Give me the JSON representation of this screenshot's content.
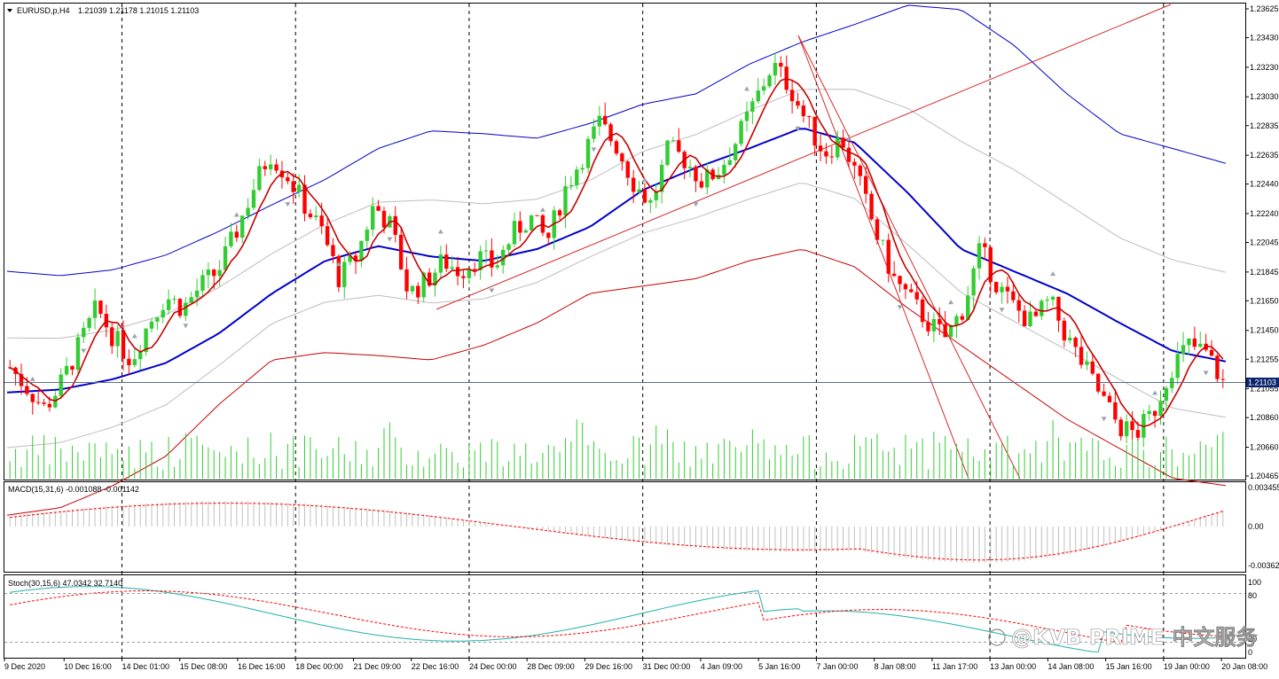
{
  "header": {
    "symbol_label": "EURUSD,p,H4",
    "ohlc": "1.21039 1.21178 1.21015 1.21103"
  },
  "macd": {
    "label": "MACD(15,31,6) -0.001088 -0.001142"
  },
  "stoch": {
    "label": "Stoch(30,15,6) 47.0342 32.7140"
  },
  "watermark": "@KVB PRIME 中文服务",
  "colors": {
    "bull": "#32cd32",
    "bear": "#ff0000",
    "bollinger_outer_upper": "#0000c8",
    "bollinger_outer_lower": "#c80000",
    "middle_band": "#0000c8",
    "fast_ma": "#c80000",
    "stoch_main": "#20b2aa",
    "stoch_signal": "#ff0000",
    "current_price_bg": "#0a246a"
  },
  "chart_data": [
    {
      "type": "candlestick",
      "title": "EURUSD,p,H4",
      "y_ticks": [
        "1.23625",
        "1.23430",
        "1.23230",
        "1.23030",
        "1.22835",
        "1.22635",
        "1.22440",
        "1.22240",
        "1.22045",
        "1.21845",
        "1.21650",
        "1.21450",
        "1.21255",
        "1.21055",
        "1.20860",
        "1.20660",
        "1.20465"
      ],
      "ylim": [
        1.20465,
        1.23625
      ],
      "current_price": "1.21103",
      "x_ticks": [
        "9 Dec 2020",
        "10 Dec 16:00",
        "14 Dec 01:00",
        "15 Dec 08:00",
        "16 Dec 16:00",
        "18 Dec 00:00",
        "21 Dec 09:00",
        "22 Dec 16:00",
        "24 Dec 00:00",
        "28 Dec 09:00",
        "29 Dec 16:00",
        "31 Dec 00:00",
        "4 Jan 09:00",
        "5 Jan 16:00",
        "7 Jan 00:00",
        "8 Jan 08:00",
        "11 Jan 17:00",
        "13 Jan 00:00",
        "14 Jan 08:00",
        "15 Jan 16:00",
        "19 Jan 00:00",
        "20 Jan 08:00"
      ],
      "close_path": [
        1.212,
        1.2106,
        1.2092,
        1.211,
        1.2135,
        1.216,
        1.214,
        1.2125,
        1.215,
        1.2168,
        1.216,
        1.2175,
        1.2185,
        1.221,
        1.224,
        1.2265,
        1.225,
        1.223,
        1.2212,
        1.218,
        1.2195,
        1.223,
        1.2215,
        1.217,
        1.2178,
        1.2192,
        1.2185,
        1.2195,
        1.2188,
        1.221,
        1.2222,
        1.2205,
        1.224,
        1.2262,
        1.2285,
        1.227,
        1.2245,
        1.223,
        1.2268,
        1.226,
        1.2245,
        1.2255,
        1.2275,
        1.23,
        1.2325,
        1.231,
        1.2285,
        1.2265,
        1.2275,
        1.2245,
        1.221,
        1.218,
        1.2165,
        1.215,
        1.214,
        1.216,
        1.22,
        1.2175,
        1.216,
        1.215,
        1.2165,
        1.214,
        1.212,
        1.21,
        1.208,
        1.2075,
        1.209,
        1.212,
        1.2135,
        1.213,
        1.211
      ],
      "bollinger": {
        "upper": [
          1.2185,
          1.2182,
          1.2186,
          1.2196,
          1.2212,
          1.223,
          1.2247,
          1.2268,
          1.228,
          1.2278,
          1.2275,
          1.2285,
          1.2298,
          1.2305,
          1.2325,
          1.234,
          1.2352,
          1.2365,
          1.2362,
          1.2338,
          1.2305,
          1.2278,
          1.2268,
          1.2258
        ],
        "middle": [
          1.2103,
          1.2105,
          1.2112,
          1.2123,
          1.2143,
          1.217,
          1.2192,
          1.2202,
          1.2195,
          1.2192,
          1.22,
          1.2215,
          1.224,
          1.2255,
          1.2268,
          1.2282,
          1.2272,
          1.2238,
          1.22,
          1.2185,
          1.217,
          1.215,
          1.2131,
          1.2124
        ],
        "lower": [
          1.202,
          1.2025,
          1.204,
          1.206,
          1.2095,
          1.2125,
          1.213,
          1.2128,
          1.2125,
          1.2135,
          1.215,
          1.217,
          1.2175,
          1.218,
          1.2192,
          1.22,
          1.2188,
          1.216,
          1.2135,
          1.211,
          1.2085,
          1.2065,
          1.2045,
          1.204
        ]
      }
    },
    {
      "type": "bar",
      "title": "MACD(15,31,6) -0.001088 -0.001142",
      "y_ticks": [
        "0.003455",
        "0.00",
        "-0.00362"
      ],
      "ylim": [
        -0.00362,
        0.003455
      ],
      "main": -0.001088,
      "signal": -0.001142
    },
    {
      "type": "line",
      "title": "Stoch(30,15,6) 47.0342 32.7140",
      "y_ticks": [
        "100",
        "80",
        "20",
        "0"
      ],
      "ylim": [
        0,
        100
      ],
      "main": 47.0342,
      "signal": 32.714
    }
  ]
}
